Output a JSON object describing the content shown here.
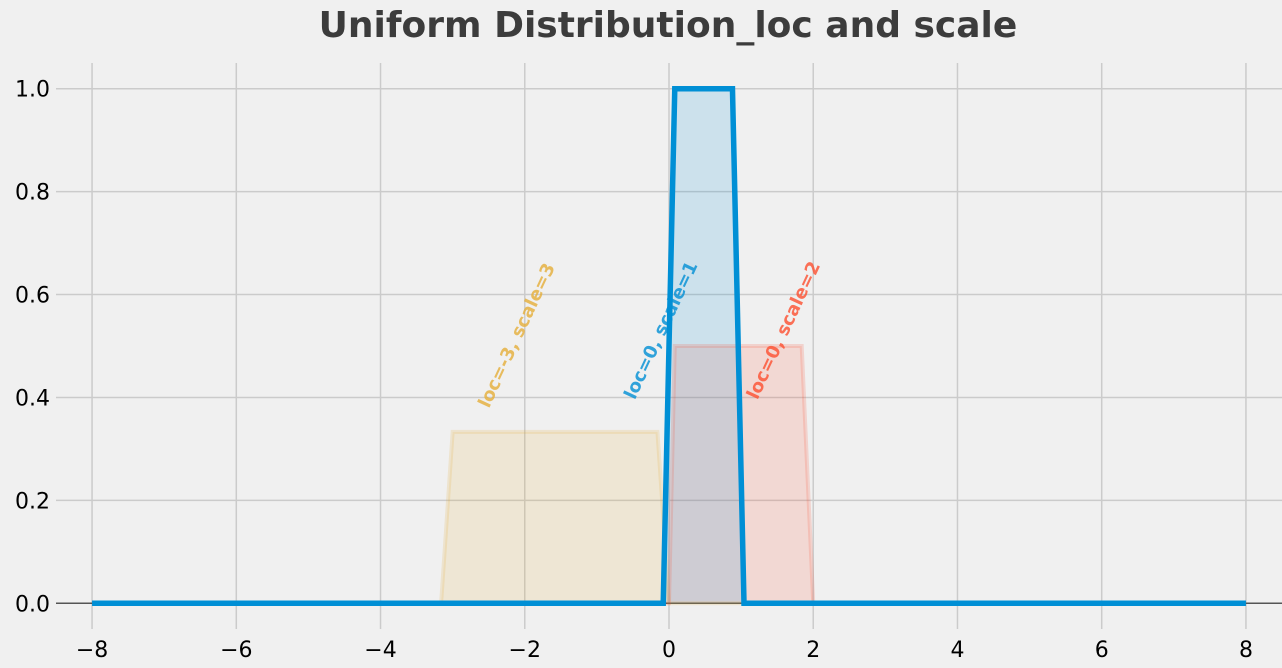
{
  "chart_data": {
    "type": "area",
    "title": "Uniform Distribution_loc and scale",
    "xlabel": "",
    "ylabel": "",
    "xlim": [
      -8.5,
      8.5
    ],
    "ylim": [
      -0.05,
      1.05
    ],
    "xticks": [
      -8,
      -6,
      -4,
      -2,
      0,
      2,
      4,
      6,
      8
    ],
    "xtick_labels": [
      "−8",
      "−6",
      "−4",
      "−2",
      "0",
      "2",
      "4",
      "6",
      "8"
    ],
    "yticks": [
      0.0,
      0.2,
      0.4,
      0.6,
      0.8,
      1.0
    ],
    "ytick_labels": [
      "0.0",
      "0.2",
      "0.4",
      "0.6",
      "0.8",
      "1.0"
    ],
    "grid": true,
    "series": [
      {
        "name": "loc=-3, scale=3",
        "color": "#e5ae38",
        "style": "faded line with filled area",
        "x": [
          -8,
          -3.16,
          -3.0,
          -0.16,
          0.0,
          8
        ],
        "y": [
          0,
          0,
          0.333,
          0.333,
          0,
          0
        ]
      },
      {
        "name": "loc=0, scale=2",
        "color": "#fc4f30",
        "style": "faded line with filled area",
        "x": [
          -8,
          0.0,
          0.08,
          1.84,
          2.0,
          8
        ],
        "y": [
          0,
          0,
          0.5,
          0.5,
          0,
          0
        ]
      },
      {
        "name": "loc=0, scale=1",
        "color": "#008fd5",
        "style": "bold line with filled area",
        "x": [
          -8,
          -0.08,
          0.08,
          0.88,
          1.04,
          8
        ],
        "y": [
          0,
          0,
          1.0,
          1.0,
          0,
          0
        ]
      }
    ],
    "annotations": [
      {
        "text": "loc=-3, scale=3",
        "color": "#e5ae38",
        "x": -2.1,
        "y": 0.52
      },
      {
        "text": "loc=0, scale=1",
        "color": "#008fd5",
        "x": -0.1,
        "y": 0.53
      },
      {
        "text": "loc=0, scale=2",
        "color": "#fc4f30",
        "x": 1.6,
        "y": 0.53
      }
    ]
  }
}
